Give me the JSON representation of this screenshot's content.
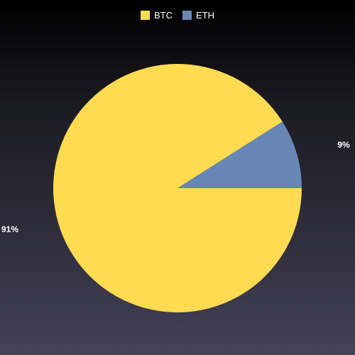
{
  "chart_data": {
    "type": "pie",
    "categories": [
      "BTC",
      "ETH"
    ],
    "values": [
      91,
      9
    ],
    "labels": [
      "91%",
      "9%"
    ],
    "colors": [
      "#ffdb52",
      "#6886b6"
    ],
    "legend": "top-center",
    "title": ""
  }
}
